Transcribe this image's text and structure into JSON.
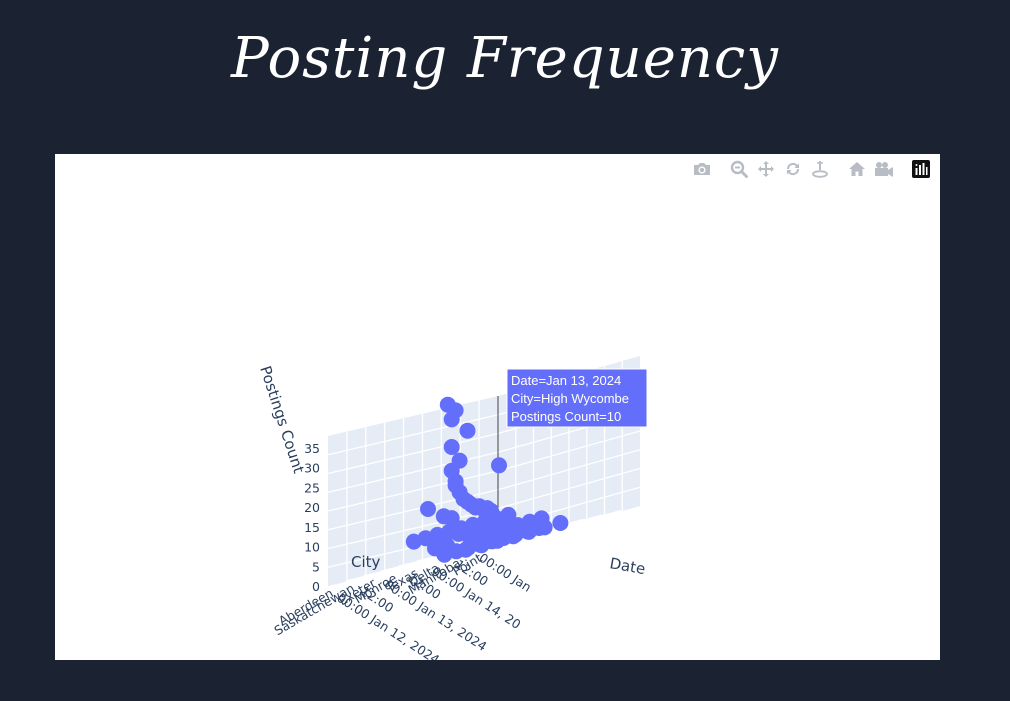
{
  "page": {
    "title": "Posting Frequency"
  },
  "modebar": {
    "buttons": [
      {
        "name": "camera-icon",
        "title": "Download plot as a png"
      },
      {
        "name": "zoom-icon",
        "title": "Zoom"
      },
      {
        "name": "pan-icon",
        "title": "Pan"
      },
      {
        "name": "orbit-rotate-icon",
        "title": "Orbital rotation"
      },
      {
        "name": "turntable-icon",
        "title": "Turntable rotation"
      },
      {
        "name": "home-icon",
        "title": "Reset camera to default"
      },
      {
        "name": "video-camera-icon",
        "title": "Reset camera to last save"
      },
      {
        "name": "plotly-logo-icon",
        "title": "Produced with Plotly"
      }
    ]
  },
  "chart_data": {
    "type": "scatter",
    "title": "",
    "projection": "3d",
    "marker_color": "#636efa",
    "xlabel": "Date",
    "ylabel": "City",
    "zlabel": "Postings Count",
    "x_ticks": [
      "00:00 Jan 12, 2024",
      "12:00",
      "00:00 Jan 13, 2024",
      "12:00",
      "00:00 Jan 14, 20",
      "12:00",
      "00:00 Jan"
    ],
    "y_ticks": [
      "Aberdeen",
      "Saskatchewan",
      "Exeter",
      "Monroe",
      "Texas",
      "Delta",
      "Manitoba",
      "Point"
    ],
    "z_ticks": [
      "0",
      "5",
      "10",
      "15",
      "20",
      "25",
      "30",
      "35"
    ],
    "zlim": [
      0,
      38
    ],
    "hover": {
      "line1": "Date=Jan 13, 2024",
      "line2": "City=High Wycombe",
      "line3": "Postings Count=10"
    },
    "points": [
      {
        "x": "Jan 13, 2024 10:00",
        "y": "Exeter",
        "z": 38
      },
      {
        "x": "Jan 13, 2024 14:00",
        "y": "Exeter",
        "z": 36
      },
      {
        "x": "Jan 13, 2024 12:00",
        "y": "Exeter",
        "z": 34
      },
      {
        "x": "Jan 13, 2024 20:00",
        "y": "Exeter",
        "z": 30
      },
      {
        "x": "Jan 13, 2024 12:00",
        "y": "Exeter",
        "z": 27
      },
      {
        "x": "Jan 13, 2024 16:00",
        "y": "Exeter",
        "z": 23
      },
      {
        "x": "Jan 13, 2024 12:00",
        "y": "Exeter",
        "z": 21
      },
      {
        "x": "Jan 14, 2024 12:00",
        "y": "Exeter",
        "z": 19
      },
      {
        "x": "Jan 13, 2024 14:00",
        "y": "Exeter",
        "z": 18
      },
      {
        "x": "Jan 13, 2024 14:00",
        "y": "Exeter",
        "z": 17
      },
      {
        "x": "Jan 13, 2024 16:00",
        "y": "Exeter",
        "z": 15
      },
      {
        "x": "Jan 13, 2024 18:00",
        "y": "Exeter",
        "z": 13
      },
      {
        "x": "Jan 13, 2024 20:00",
        "y": "Exeter",
        "z": 12
      },
      {
        "x": "Jan 13, 2024 22:00",
        "y": "Exeter",
        "z": 11
      },
      {
        "x": "Jan 14, 2024 00:00",
        "y": "Exeter",
        "z": 10
      },
      {
        "x": "Jan 14, 2024 02:00",
        "y": "Exeter",
        "z": 10
      },
      {
        "x": "Jan 14, 2024 04:00",
        "y": "Exeter",
        "z": 9
      },
      {
        "x": "Jan 14, 2024 06:00",
        "y": "Exeter",
        "z": 9
      },
      {
        "x": "Jan 14, 2024 08:00",
        "y": "Exeter",
        "z": 8
      },
      {
        "x": "Jan 13, 2024 00:00",
        "y": "Exeter",
        "z": 13
      },
      {
        "x": "Jan 13, 2024 08:00",
        "y": "Exeter",
        "z": 10
      },
      {
        "x": "Jan 13, 2024 12:00",
        "y": "Exeter",
        "z": 9
      },
      {
        "x": "Jan 12, 2024 06:00",
        "y": "Monroe",
        "z": 6
      },
      {
        "x": "Jan 12, 2024 12:00",
        "y": "Monroe",
        "z": 6
      },
      {
        "x": "Jan 12, 2024 18:00",
        "y": "Monroe",
        "z": 6
      },
      {
        "x": "Jan 13, 2024 00:00",
        "y": "Monroe",
        "z": 6
      },
      {
        "x": "Jan 13, 2024 06:00",
        "y": "Monroe",
        "z": 6
      },
      {
        "x": "Jan 13, 2024 12:00",
        "y": "Monroe",
        "z": 6
      },
      {
        "x": "Jan 13, 2024 18:00",
        "y": "Monroe",
        "z": 6
      },
      {
        "x": "Jan 14, 2024 00:00",
        "y": "Monroe",
        "z": 6
      },
      {
        "x": "Jan 14, 2024 06:00",
        "y": "Monroe",
        "z": 6
      },
      {
        "x": "Jan 12, 2024 06:00",
        "y": "Texas",
        "z": 3
      },
      {
        "x": "Jan 12, 2024 12:00",
        "y": "Texas",
        "z": 3
      },
      {
        "x": "Jan 12, 2024 18:00",
        "y": "Texas",
        "z": 5
      },
      {
        "x": "Jan 13, 2024 00:00",
        "y": "Texas",
        "z": 3
      },
      {
        "x": "Jan 13, 2024 06:00",
        "y": "Texas",
        "z": 3
      },
      {
        "x": "Jan 13, 2024 12:00",
        "y": "Texas",
        "z": 4
      },
      {
        "x": "Jan 13, 2024 18:00",
        "y": "Texas",
        "z": 3
      },
      {
        "x": "Jan 14, 2024 00:00",
        "y": "Texas",
        "z": 3
      },
      {
        "x": "Jan 14, 2024 06:00",
        "y": "Texas",
        "z": 3
      },
      {
        "x": "Jan 14, 2024 12:00",
        "y": "Texas",
        "z": 3
      },
      {
        "x": "Jan 12, 2024 00:00",
        "y": "Delta",
        "z": 1
      },
      {
        "x": "Jan 12, 2024 06:00",
        "y": "Delta",
        "z": 1
      },
      {
        "x": "Jan 12, 2024 12:00",
        "y": "Delta",
        "z": 1
      },
      {
        "x": "Jan 12, 2024 18:00",
        "y": "Delta",
        "z": 1
      },
      {
        "x": "Jan 13, 2024 00:00",
        "y": "Delta",
        "z": 1
      },
      {
        "x": "Jan 13, 2024 06:00",
        "y": "Delta",
        "z": 1
      },
      {
        "x": "Jan 13, 2024 12:00",
        "y": "Delta",
        "z": 1
      },
      {
        "x": "Jan 13, 2024 18:00",
        "y": "Delta",
        "z": 1
      },
      {
        "x": "Jan 14, 2024 00:00",
        "y": "Delta",
        "z": 1
      },
      {
        "x": "Jan 12, 2024 00:00",
        "y": "Manitoba",
        "z": 1
      },
      {
        "x": "Jan 12, 2024 08:00",
        "y": "Manitoba",
        "z": 1
      },
      {
        "x": "Jan 12, 2024 16:00",
        "y": "Manitoba",
        "z": 1
      },
      {
        "x": "Jan 13, 2024 00:00",
        "y": "Manitoba",
        "z": 1
      },
      {
        "x": "Jan 13, 2024 08:00",
        "y": "Manitoba",
        "z": 1
      },
      {
        "x": "Jan 13, 2024 16:00",
        "y": "Manitoba",
        "z": 1
      },
      {
        "x": "Jan 14, 2024 00:00",
        "y": "Manitoba",
        "z": 1
      }
    ]
  }
}
